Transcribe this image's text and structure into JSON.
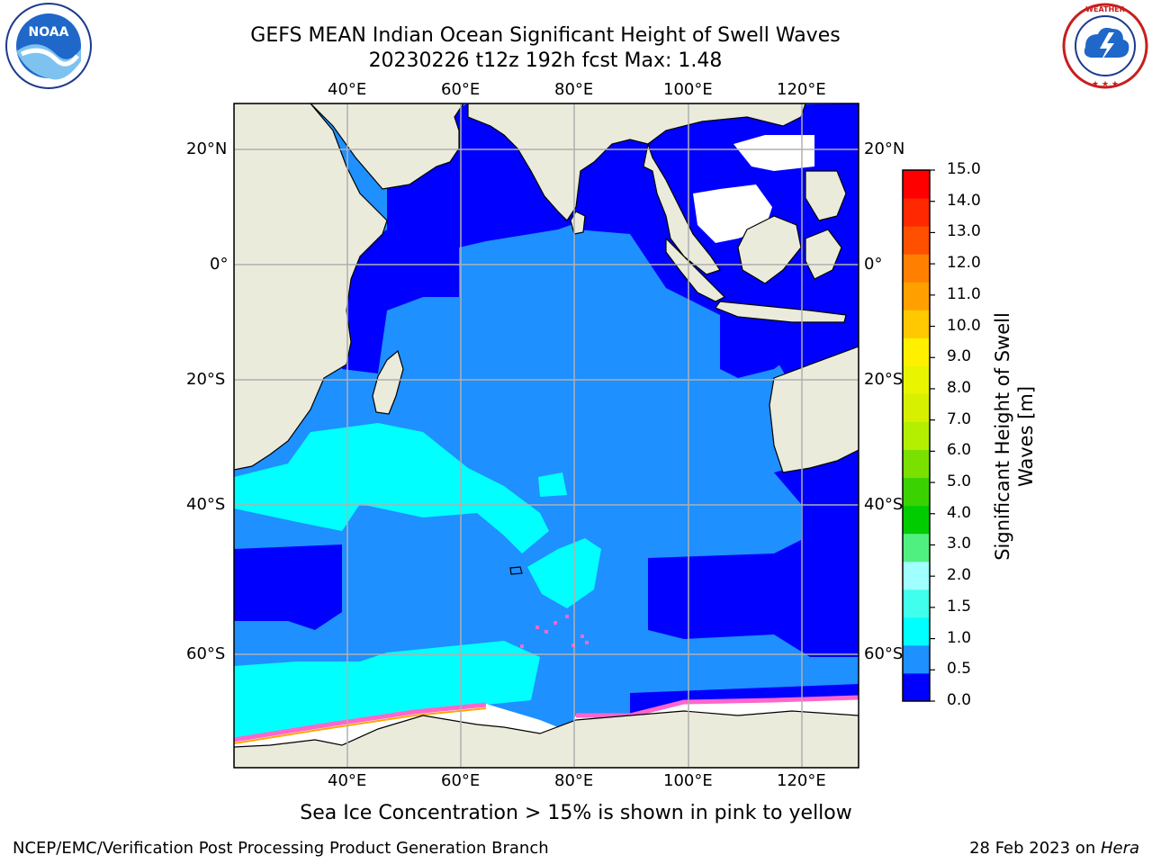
{
  "header": {
    "title_line1": "GEFS MEAN Indian Ocean Significant Height of Swell Waves",
    "title_line2": "20230226 t12z 192h fcst   Max: 1.48"
  },
  "logos": {
    "left": {
      "name": "noaa-logo",
      "text": "NOAA",
      "ring_text": "NATIONAL OCEANIC AND ATMOSPHERIC ADMINISTRATION · U.S. DEPARTMENT OF COMMERCE"
    },
    "right": {
      "name": "nws-logo",
      "ring_text": "NATIONAL WEATHER SERVICE"
    }
  },
  "map": {
    "lon_ticks_top": [
      "40°E",
      "60°E",
      "80°E",
      "100°E",
      "120°E"
    ],
    "lon_ticks_bottom": [
      "40°E",
      "60°E",
      "80°E",
      "100°E",
      "120°E"
    ],
    "lat_ticks_left": [
      "20°N",
      "0°",
      "20°S",
      "40°S",
      "60°S"
    ],
    "lat_ticks_right": [
      "20°N",
      "0°",
      "20°S",
      "40°S",
      "60°S"
    ],
    "extent": {
      "lon": [
        20,
        130
      ],
      "lat": [
        -70,
        27
      ]
    },
    "colors": {
      "land": "#ebebdc",
      "ocean_low": "#0000ff",
      "ocean_mid": "#1e90ff",
      "ocean_high": "#00ffff",
      "ice": "#ffffff",
      "ice_edge": "#ff66cc",
      "grid": "#b0b0b0"
    }
  },
  "colorbar": {
    "label": "Significant Height of Swell Waves [m]",
    "label_line1": "Significant Height of Swell",
    "label_line2": "Waves [m]",
    "ticks": [
      "15.0",
      "14.0",
      "13.0",
      "12.0",
      "11.0",
      "10.0",
      "9.0",
      "8.0",
      "7.0",
      "6.0",
      "5.0",
      "4.0",
      "3.0",
      "2.0",
      "1.5",
      "1.0",
      "0.5",
      "0.0"
    ],
    "colors_bottom_to_top": [
      "#0000ff",
      "#1e90ff",
      "#00ffff",
      "#40ffec",
      "#a0ffff",
      "#50f080",
      "#00cc00",
      "#3ad200",
      "#7ae000",
      "#b4ee00",
      "#d6f000",
      "#e8f400",
      "#fff000",
      "#ffc800",
      "#ffa000",
      "#ff8000",
      "#ff5000",
      "#ff2800",
      "#ff0000"
    ]
  },
  "footer": {
    "ice_note": "Sea Ice Concentration > 15% is shown in pink to yellow",
    "branch": "NCEP/EMC/Verification Post Processing Product Generation Branch",
    "date": "28 Feb 2023 on ",
    "machine": "Hera"
  }
}
